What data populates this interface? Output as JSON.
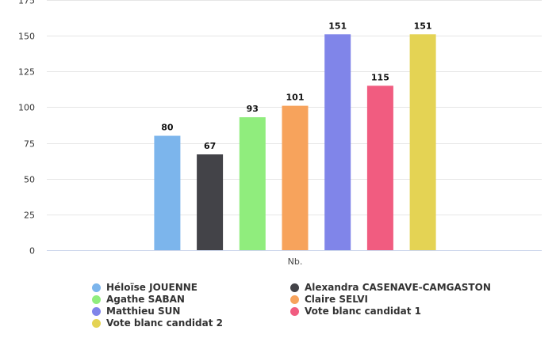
{
  "chart_data": {
    "type": "bar",
    "categories": [
      "Nb."
    ],
    "series": [
      {
        "name": "Héloïse JOUENNE",
        "values": [
          80
        ],
        "color": "#7cb5ec"
      },
      {
        "name": "Alexandra CASENAVE-CAMGASTON",
        "values": [
          67
        ],
        "color": "#434348"
      },
      {
        "name": "Agathe SABAN",
        "values": [
          93
        ],
        "color": "#90ed7d"
      },
      {
        "name": "Claire SELVI",
        "values": [
          101
        ],
        "color": "#f7a35c"
      },
      {
        "name": "Matthieu SUN",
        "values": [
          151
        ],
        "color": "#8085e9"
      },
      {
        "name": "Vote blanc candidat 1",
        "values": [
          115
        ],
        "color": "#f15c80"
      },
      {
        "name": "Vote blanc candidat 2",
        "values": [
          151
        ],
        "color": "#e4d354"
      }
    ],
    "yticks": [
      "0",
      "25",
      "50",
      "75",
      "100",
      "125",
      "150",
      "175"
    ],
    "ylim": [
      0,
      175
    ],
    "grid": true,
    "legend_position": "bottom"
  }
}
